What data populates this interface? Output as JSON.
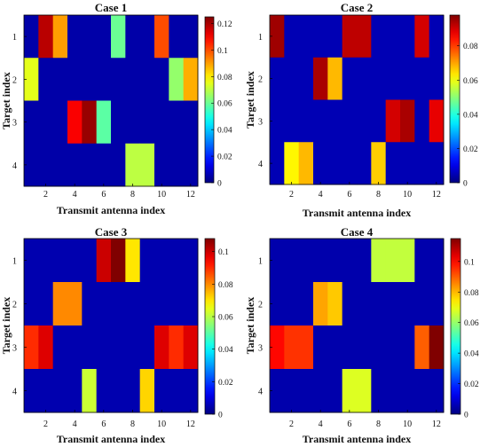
{
  "chart_data": [
    {
      "type": "heatmap",
      "title": "Case 1",
      "xlabel": "Transmit antenna index",
      "ylabel": "Target index",
      "x": [
        1,
        2,
        3,
        4,
        5,
        6,
        7,
        8,
        9,
        10,
        11,
        12
      ],
      "y": [
        1,
        2,
        3,
        4
      ],
      "xticks": [
        "2",
        "4",
        "6",
        "8",
        "10",
        "12"
      ],
      "yticks": [
        "1",
        "2",
        "3",
        "4"
      ],
      "colorbar": {
        "ticks": [
          "0",
          "0.02",
          "0.04",
          "0.06",
          "0.08",
          "0.1",
          "0.12"
        ],
        "min": 0,
        "max": 0.125
      },
      "values": [
        [
          0.005,
          0.118,
          0.09,
          0.005,
          0.005,
          0.005,
          0.06,
          0.005,
          0.005,
          0.1,
          0.005,
          0.005
        ],
        [
          0.075,
          0.005,
          0.005,
          0.005,
          0.005,
          0.005,
          0.005,
          0.005,
          0.005,
          0.005,
          0.065,
          0.088
        ],
        [
          0.005,
          0.005,
          0.005,
          0.11,
          0.122,
          0.058,
          0.005,
          0.005,
          0.005,
          0.005,
          0.005,
          0.005
        ],
        [
          0.005,
          0.005,
          0.005,
          0.005,
          0.005,
          0.005,
          0.005,
          0.07,
          0.07,
          0.005,
          0.005,
          0.005
        ]
      ]
    },
    {
      "type": "heatmap",
      "title": "Case 2",
      "xlabel": "Transmit antenna index",
      "ylabel": "Target index",
      "x": [
        1,
        2,
        3,
        4,
        5,
        6,
        7,
        8,
        9,
        10,
        11,
        12
      ],
      "y": [
        1,
        2,
        3,
        4
      ],
      "xticks": [
        "2",
        "4",
        "6",
        "8",
        "10",
        "12"
      ],
      "yticks": [
        "1",
        "2",
        "3",
        "4"
      ],
      "colorbar": {
        "ticks": [
          "0",
          "0.02",
          "0.04",
          "0.06",
          "0.08"
        ],
        "min": 0,
        "max": 0.098
      },
      "values": [
        [
          0.095,
          0.005,
          0.005,
          0.005,
          0.005,
          0.092,
          0.092,
          0.005,
          0.005,
          0.005,
          0.09,
          0.005
        ],
        [
          0.005,
          0.005,
          0.005,
          0.094,
          0.068,
          0.005,
          0.005,
          0.005,
          0.005,
          0.005,
          0.005,
          0.005
        ],
        [
          0.005,
          0.005,
          0.005,
          0.005,
          0.005,
          0.005,
          0.005,
          0.005,
          0.09,
          0.094,
          0.005,
          0.088
        ],
        [
          0.005,
          0.062,
          0.068,
          0.005,
          0.005,
          0.005,
          0.005,
          0.066,
          0.005,
          0.005,
          0.005,
          0.005
        ]
      ]
    },
    {
      "type": "heatmap",
      "title": "Case 3",
      "xlabel": "Transmit antenna index",
      "ylabel": "Target index",
      "x": [
        1,
        2,
        3,
        4,
        5,
        6,
        7,
        8,
        9,
        10,
        11,
        12
      ],
      "y": [
        1,
        2,
        3,
        4
      ],
      "xticks": [
        "2",
        "4",
        "6",
        "8",
        "10",
        "12"
      ],
      "yticks": [
        "1",
        "2",
        "3",
        "4"
      ],
      "colorbar": {
        "ticks": [
          "0",
          "0.02",
          "0.04",
          "0.06",
          "0.08",
          "0.1"
        ],
        "min": 0,
        "max": 0.108
      },
      "values": [
        [
          0.005,
          0.005,
          0.005,
          0.005,
          0.005,
          0.1,
          0.108,
          0.07,
          0.005,
          0.005,
          0.005,
          0.005
        ],
        [
          0.005,
          0.005,
          0.08,
          0.08,
          0.005,
          0.005,
          0.005,
          0.005,
          0.005,
          0.005,
          0.005,
          0.005
        ],
        [
          0.09,
          0.098,
          0.005,
          0.005,
          0.005,
          0.005,
          0.005,
          0.005,
          0.005,
          0.098,
          0.09,
          0.098
        ],
        [
          0.005,
          0.005,
          0.005,
          0.005,
          0.062,
          0.005,
          0.005,
          0.005,
          0.072,
          0.005,
          0.005,
          0.005
        ]
      ]
    },
    {
      "type": "heatmap",
      "title": "Case 4",
      "xlabel": "Transmit antenna index",
      "ylabel": "Target index",
      "x": [
        1,
        2,
        3,
        4,
        5,
        6,
        7,
        8,
        9,
        10,
        11,
        12
      ],
      "y": [
        1,
        2,
        3,
        4
      ],
      "xticks": [
        "2",
        "4",
        "6",
        "8",
        "10",
        "12"
      ],
      "yticks": [
        "1",
        "2",
        "3",
        "4"
      ],
      "colorbar": {
        "ticks": [
          "0",
          "0.02",
          "0.04",
          "0.06",
          "0.08",
          "0.1"
        ],
        "min": 0,
        "max": 0.115
      },
      "values": [
        [
          0.005,
          0.005,
          0.005,
          0.005,
          0.005,
          0.005,
          0.005,
          0.065,
          0.065,
          0.065,
          0.005,
          0.005
        ],
        [
          0.005,
          0.005,
          0.005,
          0.082,
          0.078,
          0.005,
          0.005,
          0.005,
          0.005,
          0.005,
          0.005,
          0.005
        ],
        [
          0.1,
          0.095,
          0.095,
          0.005,
          0.005,
          0.005,
          0.005,
          0.005,
          0.005,
          0.005,
          0.09,
          0.115
        ],
        [
          0.005,
          0.005,
          0.005,
          0.005,
          0.005,
          0.068,
          0.068,
          0.005,
          0.005,
          0.005,
          0.005,
          0.005
        ]
      ]
    }
  ]
}
